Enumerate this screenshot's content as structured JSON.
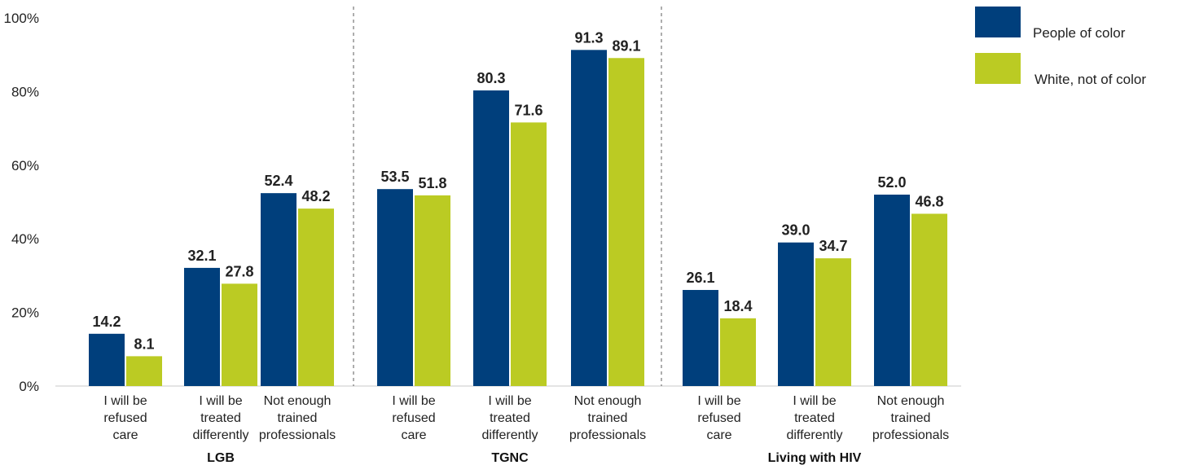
{
  "chart_data": {
    "type": "bar",
    "ylim": [
      0,
      100
    ],
    "yticks": [
      "0%",
      "20%",
      "40%",
      "60%",
      "80%",
      "100%"
    ],
    "grid": false,
    "legend_position": "top-right",
    "colors": {
      "People of color": "#003F7C",
      "White, not of color": "#BBCB23"
    },
    "series": [
      {
        "name": "People of color"
      },
      {
        "name": "White, not of color"
      }
    ],
    "groups": [
      {
        "label": "LGB",
        "categories": [
          {
            "lines": [
              "I will be",
              "refused",
              "care"
            ],
            "values": [
              14.2,
              8.1
            ],
            "labels": [
              "14.2",
              "8.1"
            ]
          },
          {
            "lines": [
              "I will be",
              "treated",
              "differently"
            ],
            "values": [
              32.1,
              27.8
            ],
            "labels": [
              "32.1",
              "27.8"
            ]
          },
          {
            "lines": [
              "Not enough",
              "trained",
              "professionals"
            ],
            "values": [
              52.4,
              48.2
            ],
            "labels": [
              "52.4",
              "48.2"
            ]
          }
        ]
      },
      {
        "label": "TGNC",
        "categories": [
          {
            "lines": [
              "I will be",
              "refused",
              "care"
            ],
            "values": [
              53.5,
              51.8
            ],
            "labels": [
              "53.5",
              "51.8"
            ]
          },
          {
            "lines": [
              "I will be",
              "treated",
              "differently"
            ],
            "values": [
              80.3,
              71.6
            ],
            "labels": [
              "80.3",
              "71.6"
            ]
          },
          {
            "lines": [
              "Not enough",
              "trained",
              "professionals"
            ],
            "values": [
              91.3,
              89.1
            ],
            "labels": [
              "91.3",
              "89.1"
            ]
          }
        ]
      },
      {
        "label": "Living with HIV",
        "categories": [
          {
            "lines": [
              "I will be",
              "refused",
              "care"
            ],
            "values": [
              26.1,
              18.4
            ],
            "labels": [
              "26.1",
              "18.4"
            ]
          },
          {
            "lines": [
              "I will be",
              "treated",
              "differently"
            ],
            "values": [
              39.0,
              34.7
            ],
            "labels": [
              "39.0",
              "34.7"
            ]
          },
          {
            "lines": [
              "Not enough",
              "trained",
              "professionals"
            ],
            "values": [
              52.0,
              46.8
            ],
            "labels": [
              "52.0",
              "46.8"
            ]
          }
        ]
      }
    ]
  }
}
